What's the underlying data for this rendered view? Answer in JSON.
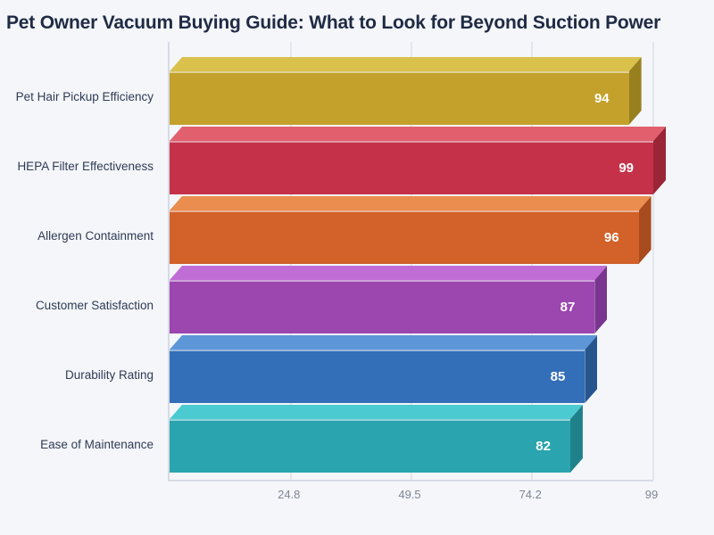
{
  "page": {
    "background_color": "#f4f6fa",
    "title_color": "#1f2a44",
    "category_label_color": "#2f3b54",
    "tick_label_color": "#7f8594",
    "gridline_color": "#e2e6ed",
    "axis_line_color": "#d7dbe4",
    "value_label_color": "#ffffff"
  },
  "chart_data": {
    "type": "bar",
    "orientation": "horizontal",
    "effect": "3d-bevel",
    "title": "Pet Owner Vacuum Buying Guide: What to Look for Beyond Suction Power",
    "categories": [
      "Pet Hair Pickup Efficiency",
      "HEPA Filter Effectiveness",
      "Allergen Containment",
      "Customer Satisfaction",
      "Durability Rating",
      "Ease of Maintenance"
    ],
    "values": [
      94,
      99,
      96,
      87,
      85,
      82
    ],
    "value_labels": [
      "94",
      "99",
      "96",
      "87",
      "85",
      "82"
    ],
    "bar_colors": [
      {
        "main": "#c3a12b",
        "light": "#d9c14c",
        "dark": "#99801f"
      },
      {
        "main": "#c43148",
        "light": "#e2606e",
        "dark": "#992536"
      },
      {
        "main": "#d2622a",
        "light": "#ea8d4e",
        "dark": "#a84c1f"
      },
      {
        "main": "#9c46b0",
        "light": "#c06ed6",
        "dark": "#7a3590"
      },
      {
        "main": "#336fb8",
        "light": "#5d97d8",
        "dark": "#27568f"
      },
      {
        "main": "#2aa4ae",
        "light": "#4ccad2",
        "dark": "#1f818a"
      }
    ],
    "xlabel": "",
    "ylabel": "",
    "xlim": [
      0,
      99
    ],
    "x_ticks": [
      "24.8",
      "49.5",
      "74.2",
      "99"
    ],
    "grid": "vertical",
    "legend": "none"
  }
}
